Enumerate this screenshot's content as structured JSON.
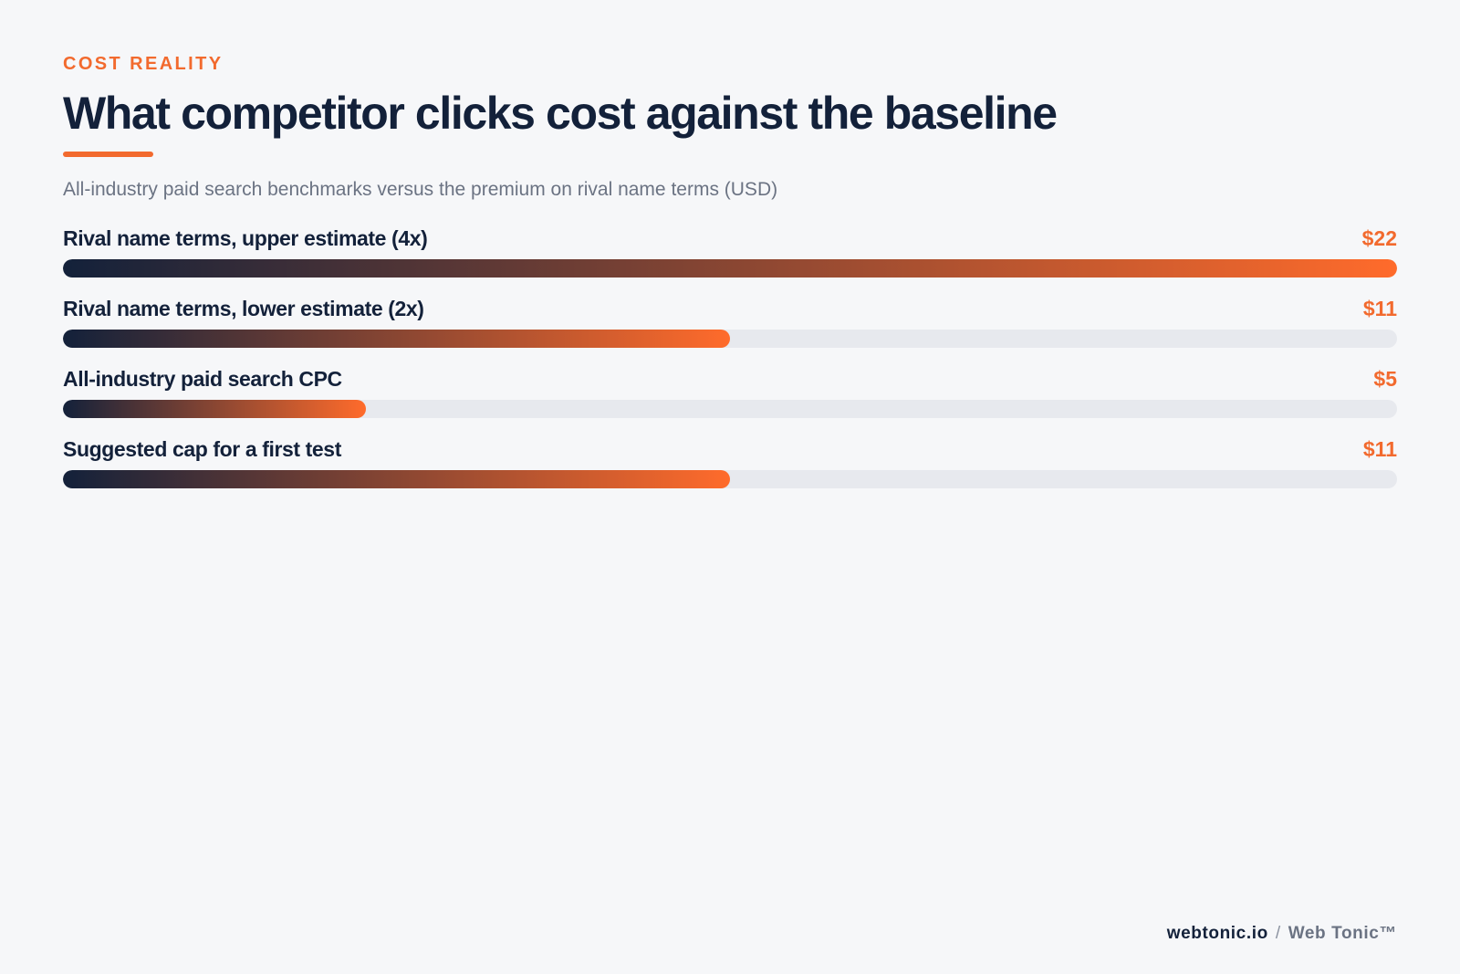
{
  "header": {
    "eyebrow": "COST REALITY",
    "title": "What competitor clicks cost against the baseline",
    "subtitle": "All-industry paid search benchmarks versus the premium on rival name terms (USD)"
  },
  "colors": {
    "accent": "#f26a2e",
    "navy": "#13213a",
    "bar_start": "#13213a",
    "bar_end": "#ff6b2b",
    "track": "#e7e9ee"
  },
  "chart_data": {
    "type": "bar",
    "orientation": "horizontal",
    "categories": [
      "Rival name terms, upper estimate (4x)",
      "Rival name terms, lower estimate (2x)",
      "All-industry paid search CPC",
      "Suggested cap for a first test"
    ],
    "values": [
      22,
      11,
      5,
      11
    ],
    "value_labels": [
      "$22",
      "$11",
      "$5",
      "$11"
    ],
    "xlim": [
      0,
      22
    ],
    "grid": false
  },
  "footer": {
    "domain": "webtonic.io",
    "separator": "/",
    "brand": "Web Tonic™"
  }
}
